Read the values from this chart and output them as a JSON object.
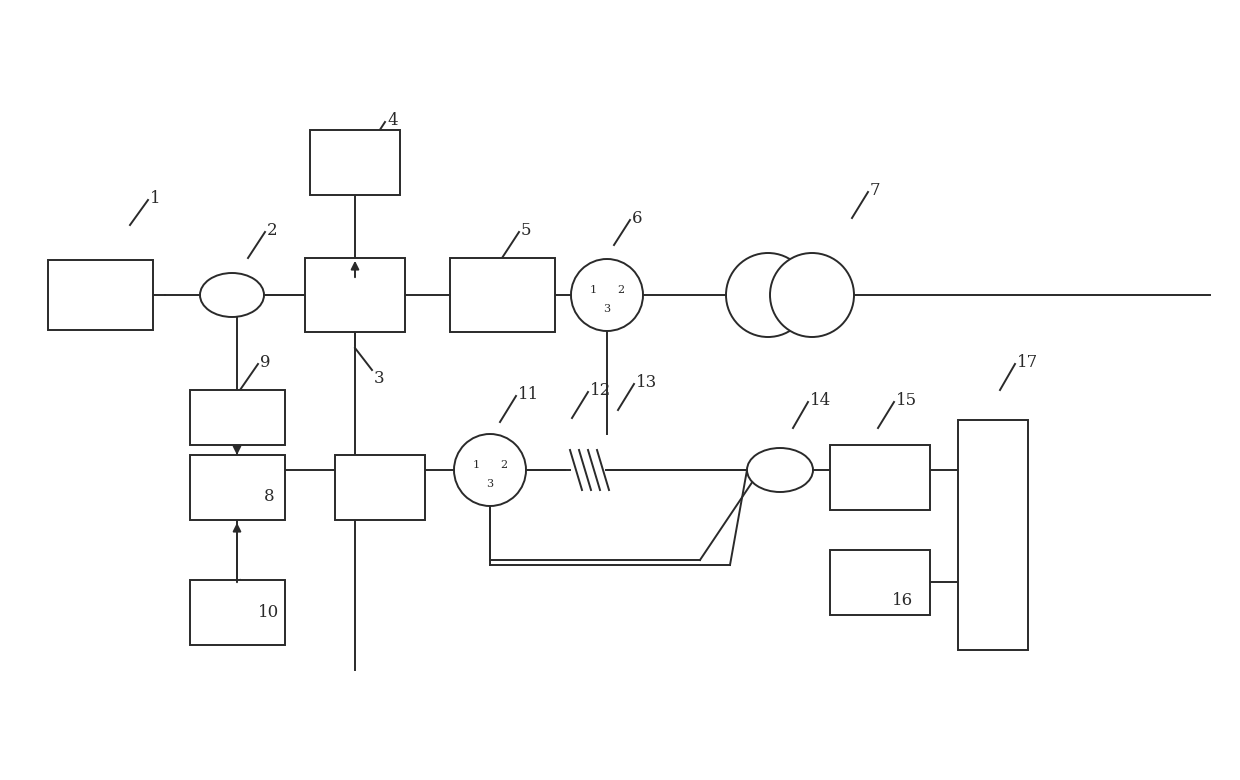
{
  "bg_color": "#ffffff",
  "lc": "#2a2a2a",
  "fc": "#ffffff",
  "lw": 1.4,
  "figsize": [
    12.4,
    7.8
  ],
  "dpi": 100
}
